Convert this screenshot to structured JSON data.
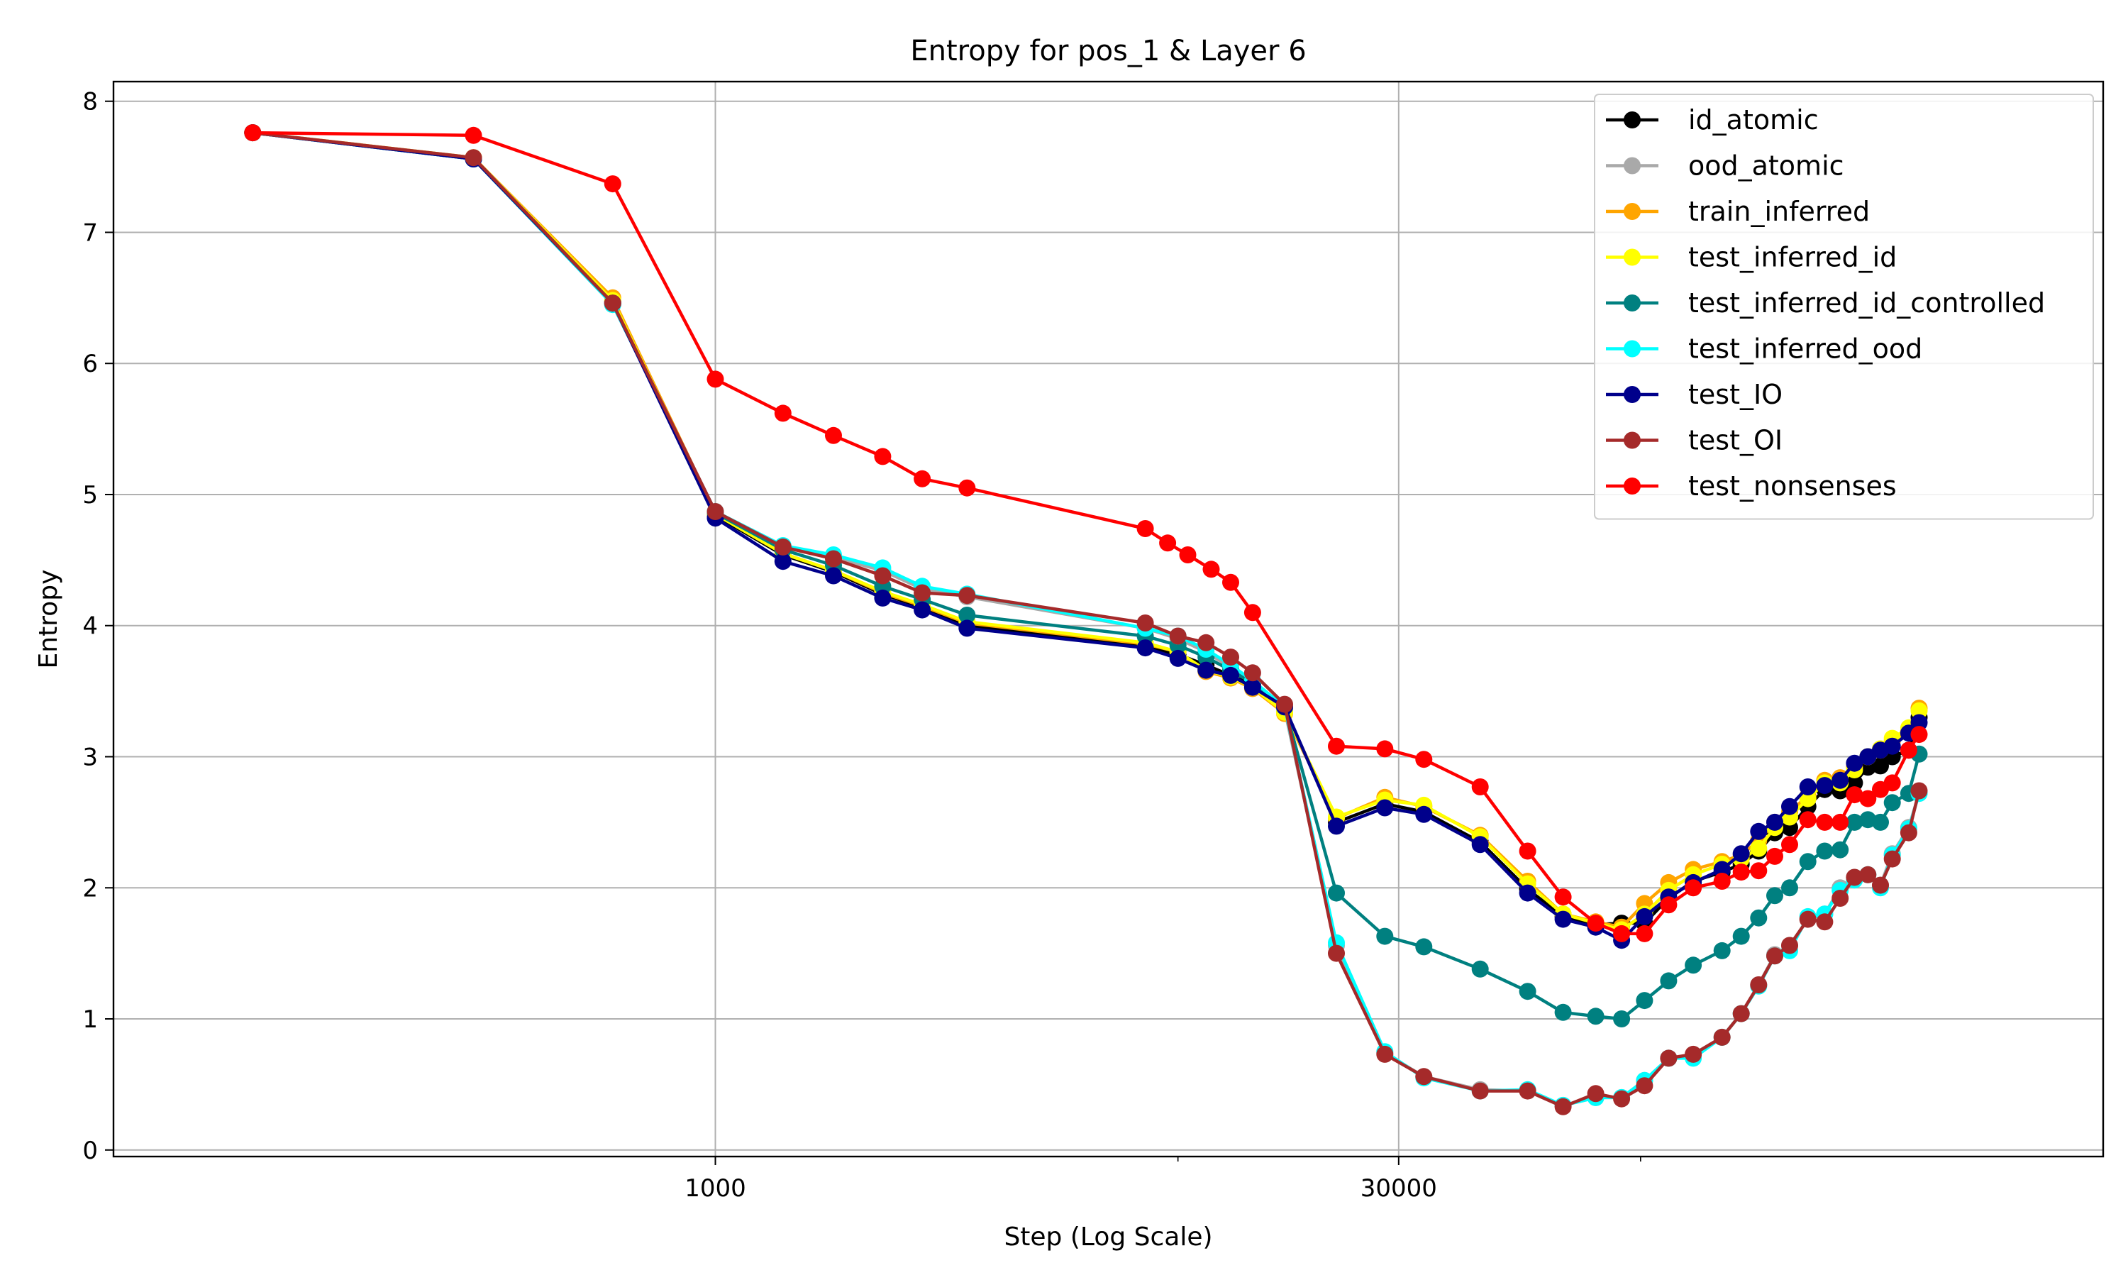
{
  "chart_data": {
    "type": "line",
    "title": "Entropy for pos_1 & Layer 6",
    "xlabel": "Step (Log Scale)",
    "ylabel": "Entropy",
    "xscale": "log",
    "xlim": [
      50,
      1000000
    ],
    "ylim": [
      -0.05,
      8.15
    ],
    "xticks": [
      {
        "value": 1000,
        "label": "1000"
      },
      {
        "value": 30000,
        "label": "30000"
      }
    ],
    "xgrid_extra": [
      10000,
      100000
    ],
    "yticks": [
      {
        "value": 0,
        "label": "0"
      },
      {
        "value": 1,
        "label": "1"
      },
      {
        "value": 2,
        "label": "2"
      },
      {
        "value": 3,
        "label": "3"
      },
      {
        "value": 4,
        "label": "4"
      },
      {
        "value": 5,
        "label": "5"
      },
      {
        "value": 6,
        "label": "6"
      },
      {
        "value": 7,
        "label": "7"
      },
      {
        "value": 8,
        "label": "8"
      }
    ],
    "grid": true,
    "legend_position": "top-right",
    "steps": [
      100,
      300,
      600,
      1000,
      1400,
      1800,
      2300,
      2800,
      3500,
      4200,
      7500,
      8500,
      9500,
      10500,
      11500,
      12500,
      13500,
      14500,
      20000,
      57000,
      28000,
      34000,
      41000,
      48000,
      56000,
      63000,
      70000,
      77000,
      84000,
      91000,
      98000,
      105000,
      112000,
      119000,
      126000,
      133000,
      140000,
      147000,
      154000,
      161000,
      168000,
      175000,
      182000,
      189000,
      196000,
      203000,
      210000,
      217000,
      224000,
      231000,
      238000,
      245000,
      252000,
      259000,
      266000,
      273000,
      280000,
      287000,
      294000,
      300000
    ],
    "series": [
      {
        "name": "id_atomic",
        "color": "#000000",
        "x": [
          100,
          300,
          600,
          1000,
          1400,
          1800,
          2300,
          2800,
          3500,
          8500,
          10000,
          11500,
          13000,
          14500,
          17000,
          22000,
          28000,
          34000,
          45000,
          57000,
          68000,
          80000,
          91000,
          102000,
          115000,
          130000,
          150000,
          165000,
          180000,
          195000,
          210000,
          230000,
          250000,
          270000,
          290000,
          310000,
          330000,
          350000,
          380000,
          400000
        ],
        "y": [
          7.76,
          7.56,
          6.47,
          4.84,
          4.54,
          4.41,
          4.24,
          4.14,
          4.0,
          3.84,
          3.78,
          3.7,
          3.62,
          3.55,
          3.36,
          2.5,
          2.64,
          2.58,
          2.35,
          1.99,
          1.78,
          1.72,
          1.73,
          1.73,
          1.92,
          2.05,
          2.12,
          2.18,
          2.28,
          2.42,
          2.46,
          2.62,
          2.75,
          2.74,
          2.8,
          2.92,
          2.93,
          3.0,
          3.05,
          3.3
        ]
      },
      {
        "name": "ood_atomic",
        "color": "#a9a9a9",
        "x": [
          100,
          300,
          600,
          1000,
          1400,
          1800,
          2300,
          2800,
          3500,
          8500,
          10000,
          11500,
          13000,
          14500,
          17000,
          22000,
          28000,
          34000,
          45000,
          57000,
          68000,
          80000,
          91000,
          102000,
          115000,
          130000,
          150000,
          165000,
          180000,
          195000,
          210000,
          230000,
          250000,
          270000,
          290000,
          310000,
          330000,
          350000,
          380000,
          400000
        ],
        "y": [
          7.76,
          7.56,
          6.46,
          4.86,
          4.6,
          4.52,
          4.42,
          4.28,
          4.22,
          3.98,
          3.9,
          3.8,
          3.68,
          3.57,
          3.36,
          1.56,
          0.74,
          0.56,
          0.46,
          0.45,
          0.34,
          0.4,
          0.4,
          0.53,
          0.7,
          0.72,
          0.86,
          1.04,
          1.26,
          1.49,
          1.56,
          1.76,
          1.8,
          2.0,
          2.08,
          2.1,
          2.02,
          2.26,
          2.46,
          2.72
        ]
      },
      {
        "name": "train_inferred",
        "color": "#ffa500",
        "x": [
          100,
          300,
          600,
          1000,
          1400,
          1800,
          2300,
          2800,
          3500,
          8500,
          10000,
          11500,
          13000,
          14500,
          17000,
          22000,
          28000,
          34000,
          45000,
          57000,
          68000,
          80000,
          91000,
          102000,
          115000,
          130000,
          150000,
          165000,
          180000,
          195000,
          210000,
          230000,
          250000,
          270000,
          290000,
          310000,
          330000,
          350000,
          380000,
          400000
        ],
        "y": [
          7.76,
          7.57,
          6.5,
          4.86,
          4.55,
          4.42,
          4.25,
          4.15,
          4.02,
          3.86,
          3.8,
          3.65,
          3.6,
          3.52,
          3.33,
          2.53,
          2.69,
          2.62,
          2.4,
          2.05,
          1.8,
          1.74,
          1.7,
          1.88,
          2.04,
          2.14,
          2.2,
          2.25,
          2.36,
          2.5,
          2.58,
          2.7,
          2.82,
          2.84,
          2.92,
          3.0,
          3.05,
          3.12,
          3.2,
          3.37
        ]
      },
      {
        "name": "test_inferred_id",
        "color": "#ffff00",
        "x": [
          100,
          300,
          600,
          1000,
          1400,
          1800,
          2300,
          2800,
          3500,
          8500,
          10000,
          11500,
          13000,
          14500,
          17000,
          22000,
          28000,
          34000,
          45000,
          57000,
          68000,
          80000,
          91000,
          102000,
          115000,
          130000,
          150000,
          165000,
          180000,
          195000,
          210000,
          230000,
          250000,
          270000,
          290000,
          310000,
          330000,
          350000,
          380000,
          400000
        ],
        "y": [
          7.76,
          7.57,
          6.48,
          4.85,
          4.55,
          4.42,
          4.26,
          4.16,
          4.03,
          3.87,
          3.8,
          3.66,
          3.61,
          3.53,
          3.34,
          2.54,
          2.67,
          2.63,
          2.39,
          2.03,
          1.8,
          1.73,
          1.68,
          1.8,
          1.98,
          2.1,
          2.18,
          2.22,
          2.3,
          2.46,
          2.54,
          2.68,
          2.8,
          2.8,
          2.9,
          3.0,
          3.06,
          3.14,
          3.22,
          3.35
        ]
      },
      {
        "name": "test_inferred_id_controlled",
        "color": "#008080",
        "x": [
          100,
          300,
          600,
          1000,
          1400,
          1800,
          2300,
          2800,
          3500,
          8500,
          10000,
          11500,
          13000,
          14500,
          17000,
          22000,
          28000,
          34000,
          45000,
          57000,
          68000,
          80000,
          91000,
          102000,
          115000,
          130000,
          150000,
          165000,
          180000,
          195000,
          210000,
          230000,
          250000,
          270000,
          290000,
          310000,
          330000,
          350000,
          380000,
          400000
        ],
        "y": [
          7.76,
          7.56,
          6.45,
          4.86,
          4.58,
          4.46,
          4.3,
          4.2,
          4.08,
          3.92,
          3.85,
          3.76,
          3.66,
          3.56,
          3.38,
          1.96,
          1.63,
          1.55,
          1.38,
          1.21,
          1.05,
          1.02,
          1.0,
          1.14,
          1.29,
          1.41,
          1.52,
          1.63,
          1.77,
          1.94,
          2.0,
          2.2,
          2.28,
          2.29,
          2.5,
          2.52,
          2.5,
          2.65,
          2.72,
          3.02
        ]
      },
      {
        "name": "test_inferred_ood",
        "color": "#00ffff",
        "x": [
          100,
          300,
          600,
          1000,
          1400,
          1800,
          2300,
          2800,
          3500,
          8500,
          10000,
          11500,
          13000,
          14500,
          17000,
          22000,
          28000,
          34000,
          45000,
          57000,
          68000,
          80000,
          91000,
          102000,
          115000,
          130000,
          150000,
          165000,
          180000,
          195000,
          210000,
          230000,
          250000,
          270000,
          290000,
          310000,
          330000,
          350000,
          380000,
          400000
        ],
        "y": [
          7.76,
          7.56,
          6.45,
          4.87,
          4.61,
          4.54,
          4.44,
          4.3,
          4.24,
          3.98,
          3.92,
          3.82,
          3.7,
          3.58,
          3.38,
          1.58,
          0.75,
          0.55,
          0.45,
          0.46,
          0.34,
          0.4,
          0.4,
          0.53,
          0.7,
          0.7,
          0.86,
          1.04,
          1.25,
          1.48,
          1.52,
          1.78,
          1.8,
          1.98,
          2.06,
          2.1,
          2.0,
          2.25,
          2.45,
          2.72
        ]
      },
      {
        "name": "test_IO",
        "color": "#00008b",
        "x": [
          100,
          300,
          600,
          1000,
          1400,
          1800,
          2300,
          2800,
          3500,
          8500,
          10000,
          11500,
          13000,
          14500,
          17000,
          22000,
          28000,
          34000,
          45000,
          57000,
          68000,
          80000,
          91000,
          102000,
          115000,
          130000,
          150000,
          165000,
          180000,
          195000,
          210000,
          230000,
          250000,
          270000,
          290000,
          310000,
          330000,
          350000,
          380000,
          400000
        ],
        "y": [
          7.76,
          7.56,
          6.46,
          4.82,
          4.49,
          4.38,
          4.21,
          4.12,
          3.98,
          3.83,
          3.75,
          3.66,
          3.62,
          3.53,
          3.38,
          2.47,
          2.61,
          2.56,
          2.33,
          1.96,
          1.76,
          1.7,
          1.6,
          1.78,
          1.93,
          2.04,
          2.14,
          2.26,
          2.43,
          2.5,
          2.62,
          2.77,
          2.78,
          2.82,
          2.95,
          3.0,
          3.05,
          3.08,
          3.18,
          3.26
        ]
      },
      {
        "name": "test_OI",
        "color": "#a52a2a",
        "x": [
          100,
          300,
          600,
          1000,
          1400,
          1800,
          2300,
          2800,
          3500,
          8500,
          10000,
          11500,
          13000,
          14500,
          17000,
          22000,
          28000,
          34000,
          45000,
          57000,
          68000,
          80000,
          91000,
          102000,
          115000,
          130000,
          150000,
          165000,
          180000,
          195000,
          210000,
          230000,
          250000,
          270000,
          290000,
          310000,
          330000,
          350000,
          380000,
          400000
        ],
        "y": [
          7.76,
          7.57,
          6.46,
          4.87,
          4.6,
          4.51,
          4.38,
          4.25,
          4.23,
          4.02,
          3.92,
          3.87,
          3.76,
          3.64,
          3.4,
          1.5,
          0.73,
          0.56,
          0.45,
          0.45,
          0.33,
          0.43,
          0.39,
          0.49,
          0.7,
          0.73,
          0.86,
          1.04,
          1.26,
          1.48,
          1.56,
          1.76,
          1.74,
          1.92,
          2.08,
          2.1,
          2.02,
          2.22,
          2.42,
          2.74
        ]
      },
      {
        "name": "test_nonsenses",
        "color": "#ff0000",
        "x": [
          100,
          300,
          600,
          1000,
          1400,
          1800,
          2300,
          2800,
          3500,
          8500,
          9500,
          10500,
          11800,
          13000,
          14500,
          22000,
          28000,
          34000,
          45000,
          57000,
          68000,
          80000,
          91000,
          102000,
          115000,
          130000,
          150000,
          165000,
          180000,
          195000,
          210000,
          230000,
          250000,
          270000,
          290000,
          310000,
          330000,
          350000,
          380000,
          400000
        ],
        "y": [
          7.76,
          7.74,
          7.37,
          5.88,
          5.62,
          5.45,
          5.29,
          5.12,
          5.05,
          4.74,
          4.63,
          4.54,
          4.43,
          4.33,
          4.1,
          3.08,
          3.06,
          2.98,
          2.77,
          2.28,
          1.93,
          1.73,
          1.65,
          1.65,
          1.87,
          2.0,
          2.05,
          2.12,
          2.13,
          2.24,
          2.33,
          2.52,
          2.5,
          2.5,
          2.71,
          2.68,
          2.75,
          2.8,
          3.05,
          3.17
        ]
      }
    ]
  }
}
